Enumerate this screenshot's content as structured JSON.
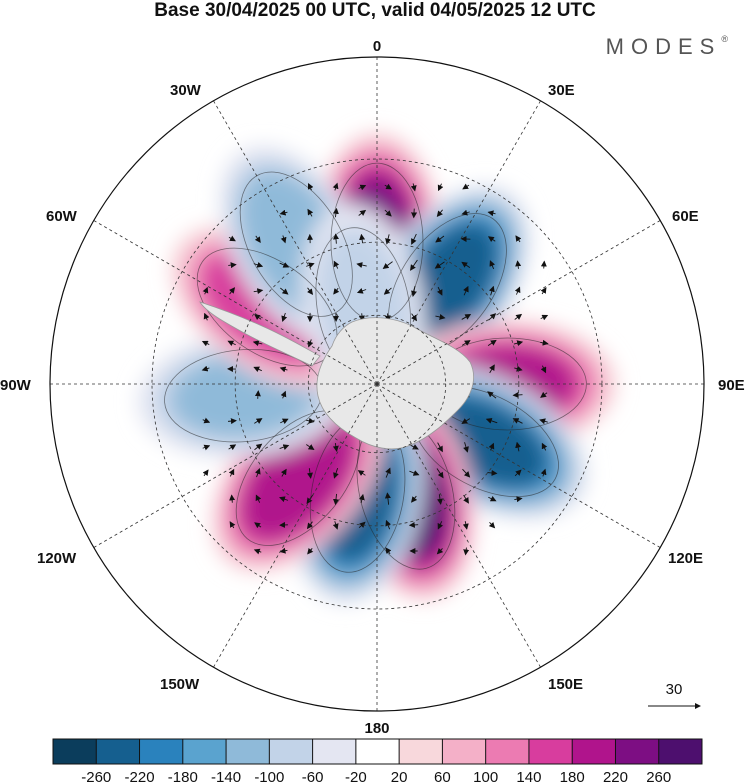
{
  "title": "Base 30/04/2025 00 UTC, valid 04/05/2025 12 UTC",
  "brand": "MODES",
  "brand_mark": "®",
  "longitude_labels": {
    "top": "0",
    "bottom": "180",
    "left": "90W",
    "right": "90E",
    "upper_left": "30W",
    "upper_right": "30E",
    "mid_upper_left": "60W",
    "mid_upper_right": "60E",
    "lower_left": "120W",
    "lower_right": "120E",
    "bottom_left": "150W",
    "bottom_right": "150E"
  },
  "reference_vector_label": "30",
  "colorbar": {
    "ticks": [
      "-260",
      "-220",
      "-180",
      "-140",
      "-100",
      "-60",
      "-20",
      "20",
      "60",
      "100",
      "140",
      "180",
      "220",
      "260"
    ],
    "colors": [
      "#0b3d5c",
      "#155f8f",
      "#2a82bd",
      "#5aa3cf",
      "#8fbad9",
      "#c2d3e8",
      "#e4e6f2",
      "#ffffff",
      "#f8d8dc",
      "#f4b0c8",
      "#ec7bb2",
      "#d83d9e",
      "#b0148c",
      "#7d0e83",
      "#4d0f6e"
    ]
  },
  "anomalies": [
    {
      "lon": 0,
      "lat": -50,
      "value": 230
    },
    {
      "lon": 35,
      "lat": -55,
      "value": -250
    },
    {
      "lon": 90,
      "lat": -53,
      "value": 190
    },
    {
      "lon": 118,
      "lat": -55,
      "value": -240
    },
    {
      "lon": 165,
      "lat": -58,
      "value": 270
    },
    {
      "lon": -170,
      "lat": -58,
      "value": -250
    },
    {
      "lon": -140,
      "lat": -55,
      "value": 220
    },
    {
      "lon": -95,
      "lat": -52,
      "value": -110
    },
    {
      "lon": -55,
      "lat": -52,
      "value": 170
    },
    {
      "lon": -30,
      "lat": -45,
      "value": -140
    },
    {
      "lon": -10,
      "lat": -67,
      "value": -70
    }
  ]
}
